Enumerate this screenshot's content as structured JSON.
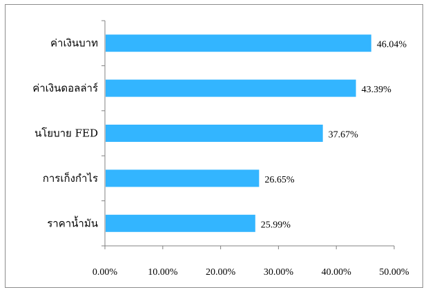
{
  "chart_data": {
    "type": "bar",
    "orientation": "horizontal",
    "categories": [
      "ค่าเงินบาท",
      "ค่าเงินดอลล่าร์",
      "นโยบาย FED",
      "การเก็งกำไร",
      "ราคาน้ำมัน"
    ],
    "values": [
      46.04,
      43.39,
      37.67,
      26.65,
      25.99
    ],
    "data_labels": [
      "46.04%",
      "43.39%",
      "37.67%",
      "26.65%",
      "25.99%"
    ],
    "xticks": [
      "0.00%",
      "10.00%",
      "20.00%",
      "30.00%",
      "40.00%",
      "50.00%"
    ],
    "xlim": [
      0,
      50
    ],
    "title": "",
    "xlabel": "",
    "ylabel": "",
    "grid": false,
    "legend": "none",
    "bar_color": "#33b5ff"
  }
}
